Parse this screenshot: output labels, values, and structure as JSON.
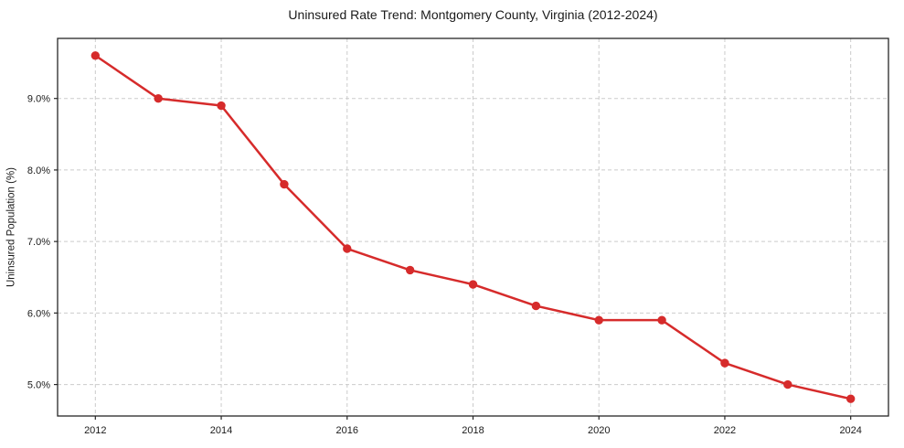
{
  "page": {
    "background": "#ffffff"
  },
  "chart_data": {
    "type": "line",
    "title": "Uninsured Rate Trend: Montgomery County, Virginia (2012-2024)",
    "xlabel": "",
    "ylabel": "Uninsured Population (%)",
    "series": [
      {
        "name": "Uninsured rate",
        "x": [
          2012,
          2013,
          2014,
          2015,
          2016,
          2017,
          2018,
          2019,
          2020,
          2021,
          2022,
          2023,
          2024
        ],
        "values": [
          9.6,
          9.0,
          8.9,
          7.8,
          6.9,
          6.6,
          6.4,
          6.1,
          5.9,
          5.9,
          5.3,
          5.0,
          4.8
        ]
      }
    ],
    "xlim": [
      2011.4,
      2024.6
    ],
    "ylim": [
      4.56,
      9.84
    ],
    "xticks": [
      2012,
      2014,
      2016,
      2018,
      2020,
      2022,
      2024
    ],
    "xtick_labels": [
      "2012",
      "2014",
      "2016",
      "2018",
      "2020",
      "2022",
      "2024"
    ],
    "yticks": [
      5.0,
      6.0,
      7.0,
      8.0,
      9.0
    ],
    "ytick_labels": [
      "5.0%",
      "6.0%",
      "7.0%",
      "8.0%",
      "9.0%"
    ],
    "grid": true,
    "grid_style": "dashed",
    "legend": false,
    "marker": "circle",
    "colors": {
      "line": "#d62b2b",
      "marker": "#d62b2b",
      "grid": "#cbcbcb",
      "axis": "#262626",
      "tick_text": "#1a1a1a"
    }
  }
}
